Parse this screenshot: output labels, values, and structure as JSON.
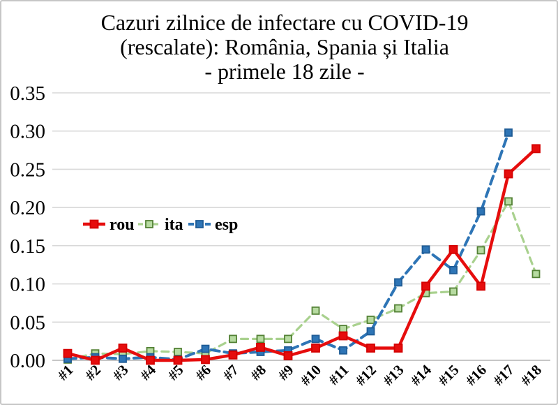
{
  "chart_data": {
    "type": "line",
    "title": "Cazuri zilnice de infectare cu COVID-19 (rescalate): România, Spania și Italia - primele 18 zile -",
    "title_lines": [
      "Cazuri zilnice de infectare cu COVID-19",
      "(rescalate): România, Spania și Italia",
      "- primele 18 zile -"
    ],
    "categories": [
      "#1",
      "#2",
      "#3",
      "#4",
      "#5",
      "#6",
      "#7",
      "#8",
      "#9",
      "#10",
      "#11",
      "#12",
      "#13",
      "#14",
      "#15",
      "#16",
      "#17",
      "#18"
    ],
    "series": [
      {
        "name": "rou",
        "color": "#e60d0d",
        "marker_fill": "#e60d0d",
        "marker_stroke": "#d40000",
        "line_style": "solid",
        "values": [
          0.009,
          0.0,
          0.016,
          0.0,
          0.0,
          0.001,
          0.007,
          0.017,
          0.006,
          0.016,
          0.032,
          0.016,
          0.016,
          0.097,
          0.145,
          0.097,
          0.244,
          0.277
        ]
      },
      {
        "name": "ita",
        "color": "#a9d18e",
        "marker_fill": "#b7dba1",
        "marker_stroke": "#538135",
        "line_style": "dashed",
        "values": [
          0.001,
          0.009,
          0.008,
          0.012,
          0.011,
          0.009,
          0.028,
          0.028,
          0.028,
          0.065,
          0.041,
          0.053,
          0.068,
          0.088,
          0.09,
          0.144,
          0.208,
          0.113
        ]
      },
      {
        "name": "esp",
        "color": "#2e75b6",
        "marker_fill": "#2e75b6",
        "marker_stroke": "#1f5c96",
        "line_style": "dashed",
        "values": [
          0.002,
          0.004,
          0.002,
          0.004,
          0.001,
          0.015,
          0.009,
          0.011,
          0.013,
          0.028,
          0.013,
          0.038,
          0.102,
          0.145,
          0.118,
          0.195,
          0.298,
          null
        ]
      }
    ],
    "xlabel": "",
    "ylabel": "",
    "ylim": [
      0,
      0.35
    ],
    "ytick_step": 0.05,
    "ytick_labels": [
      "0.00",
      "0.05",
      "0.10",
      "0.15",
      "0.20",
      "0.25",
      "0.30",
      "0.35"
    ],
    "grid": true,
    "legend_position": "inside-left",
    "legend": [
      "rou",
      "ita",
      "esp"
    ]
  },
  "colors": {
    "gridline": "#d9d9d9",
    "baseline": "#b3b3b3",
    "text": "#000000",
    "background": "#ffffff",
    "frame_border": "#c6c6c6"
  }
}
